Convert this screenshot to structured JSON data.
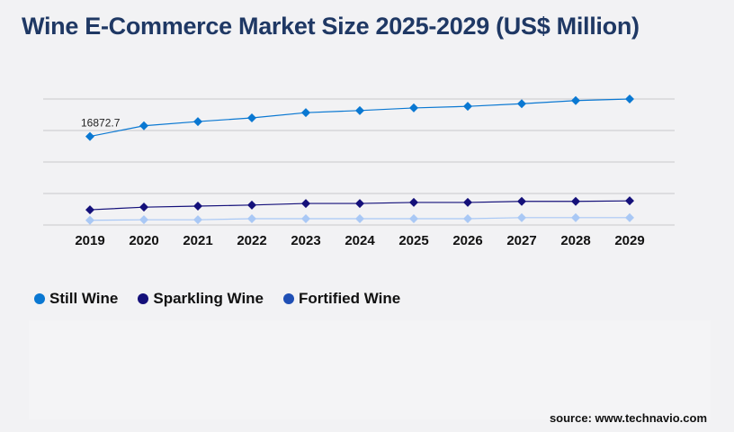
{
  "chart_data": {
    "type": "line",
    "title": "Wine E-Commerce Market Size 2025-2029 (US$ Million)",
    "categories": [
      "2019",
      "2020",
      "2021",
      "2022",
      "2023",
      "2024",
      "2025",
      "2026",
      "2027",
      "2028",
      "2029"
    ],
    "ylim": [
      0,
      24000
    ],
    "grid": true,
    "legend_placement": "bottom-left",
    "series": [
      {
        "name": "Still Wine",
        "color": "#0a78d2",
        "values": [
          16872.7,
          18900,
          19700,
          20400,
          21400,
          21800,
          22300,
          22600,
          23100,
          23700,
          24000
        ]
      },
      {
        "name": "Sparkling Wine",
        "color": "#14107a",
        "values": [
          2900,
          3400,
          3600,
          3800,
          4100,
          4100,
          4300,
          4300,
          4500,
          4500,
          4600
        ]
      },
      {
        "name": "Fortified Wine",
        "color": "#a9c8f5",
        "legend_color": "#1f4fb5",
        "values": [
          900,
          1000,
          1000,
          1200,
          1200,
          1200,
          1200,
          1200,
          1400,
          1400,
          1400
        ]
      }
    ],
    "annotations": [
      {
        "category": "2019",
        "series": "Still Wine",
        "text": "16872.7"
      }
    ]
  },
  "source": "source: www.technavio.com"
}
